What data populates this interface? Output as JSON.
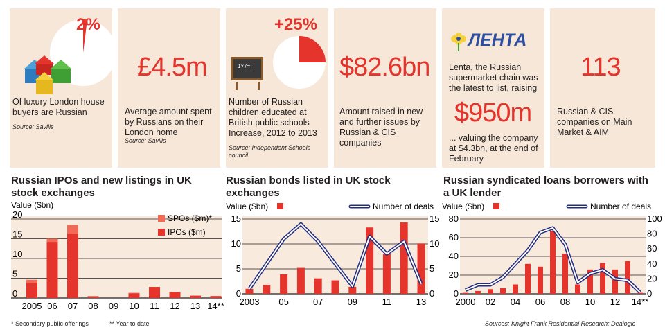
{
  "stats": [
    {
      "value": "2%",
      "text": "Of luxury London house buyers are Russian",
      "source": "Source: Savills"
    },
    {
      "value": "£4.5m",
      "text": "Average amount spent by Russians on their London home",
      "source": "Source: Savills"
    },
    {
      "value": "+25%",
      "text": "Number of Russian children educated at British public schools Increase, 2012 to 2013",
      "source": "Source: Independent Schools council",
      "board_text": "1×7="
    },
    {
      "value": "$82.6bn",
      "text": "Amount raised in new and further issues by Russian & CIS companies"
    },
    {
      "logo": "ЛЕНТА",
      "text_top": "Lenta, the Russian supermarket chain was the latest to list, raising",
      "value": "$950m",
      "text_bottom": "... valuing the company at $4.3bn, at the end of February"
    },
    {
      "value": "113",
      "text": "Russian & CIS companies on Main Market & AIM"
    }
  ],
  "colors": {
    "panel": "#f6e7d8",
    "chart_bg": "#f8ebde",
    "red": "#e4342c",
    "spo": "#f26a55",
    "navy": "#232c80",
    "grid": "#231f20"
  },
  "icons": [
    "houses-icon",
    "blackboard-icon",
    "lenta-flower-icon"
  ],
  "chart_data": [
    {
      "type": "bar",
      "title": "Russian IPOs and new listings in UK stock exchanges",
      "ylabel": "Value ($bn)",
      "ylim": [
        0,
        20
      ],
      "yticks": [
        0,
        5,
        10,
        15,
        20
      ],
      "categories": [
        "2005",
        "06",
        "07",
        "08",
        "09",
        "10",
        "11",
        "12",
        "13",
        "14**"
      ],
      "series": [
        {
          "name": "IPOs ($m)",
          "values": [
            3.8,
            14.2,
            16.3,
            0.3,
            0,
            1.2,
            2.8,
            1.5,
            0.6,
            0.5
          ]
        },
        {
          "name": "SPOs ($m)*",
          "values": [
            0.8,
            0.8,
            2.2,
            0.2,
            0,
            0.1,
            0,
            0,
            0,
            0
          ]
        }
      ],
      "stacked": true,
      "legend": "top-right"
    },
    {
      "type": "bar+line",
      "title": "Russian bonds listed in UK stock exchanges",
      "ylabel": "Value ($bn)",
      "y2label": "Number of deals",
      "ylim": [
        0,
        15
      ],
      "y2lim": [
        0,
        15
      ],
      "yticks": [
        0,
        5,
        10,
        15
      ],
      "y2ticks": [
        0,
        5,
        10,
        15
      ],
      "x": [
        "2003",
        "04",
        "05",
        "06",
        "07",
        "08",
        "09",
        "10",
        "11",
        "12",
        "13"
      ],
      "xticklabels": [
        "2003",
        "",
        "05",
        "",
        "07",
        "",
        "09",
        "",
        "11",
        "",
        "13"
      ],
      "series": [
        {
          "name": "Value ($bn)",
          "kind": "bar",
          "values": [
            1.0,
            1.8,
            3.9,
            5.2,
            3.1,
            2.7,
            1.4,
            13.3,
            8.0,
            14.3,
            10.1
          ]
        },
        {
          "name": "Number of deals",
          "kind": "line",
          "values": [
            1.0,
            6.0,
            11.0,
            14.0,
            10.5,
            6.0,
            1.5,
            11.5,
            8.0,
            10.5,
            2.0
          ]
        }
      ],
      "legend": "top"
    },
    {
      "type": "bar+line",
      "title": "Russian syndicated loans borrowers with a UK lender",
      "ylabel": "Value ($bn)",
      "y2label": "Number of deals",
      "ylim": [
        0,
        80
      ],
      "y2lim": [
        0,
        100
      ],
      "yticks": [
        0,
        20,
        40,
        60,
        80
      ],
      "y2ticks": [
        0,
        20,
        40,
        60,
        80,
        100
      ],
      "x": [
        "2000",
        "01",
        "02",
        "03",
        "04",
        "05",
        "06",
        "07",
        "08",
        "09",
        "10",
        "11",
        "12",
        "13",
        "14**"
      ],
      "xticklabels": [
        "2000",
        "",
        "02",
        "",
        "04",
        "",
        "06",
        "",
        "08",
        "",
        "10",
        "",
        "12",
        "",
        "14**"
      ],
      "series": [
        {
          "name": "Value ($bn)",
          "kind": "bar",
          "values": [
            1,
            3,
            5,
            6,
            10,
            32,
            29,
            67,
            43,
            10,
            26,
            33,
            26,
            35,
            1
          ]
        },
        {
          "name": "Number of deals",
          "kind": "line",
          "values": [
            5,
            12,
            12,
            22,
            40,
            58,
            82,
            88,
            66,
            15,
            27,
            32,
            20,
            18,
            2
          ]
        }
      ],
      "legend": "top"
    }
  ],
  "footnotes": {
    "left1": "* Secondary public offerings",
    "left2": "** Year to date",
    "right": "Sources: Knight Frank Residential Research;  Dealogic"
  }
}
